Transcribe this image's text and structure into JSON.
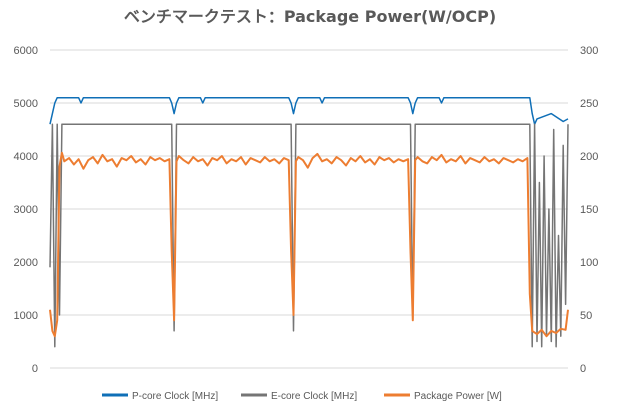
{
  "chart_data": {
    "type": "line",
    "title": "ベンチマークテスト：Package Power(W/OCP)",
    "xlabel": "",
    "ylabel_left": "",
    "ylabel_right": "",
    "ylim_left": [
      0,
      6000
    ],
    "ylim_right": [
      0,
      300
    ],
    "yticks_left": [
      "0",
      "1000",
      "2000",
      "3000",
      "4000",
      "5000",
      "6000"
    ],
    "yticks_right": [
      "0",
      "50",
      "100",
      "150",
      "200",
      "250",
      "300"
    ],
    "grid": true,
    "legend_position": "bottom",
    "colors": {
      "pcore": "#0f6fb7",
      "ecore": "#757575",
      "power": "#ed7d31"
    },
    "series": [
      {
        "name": "P-core Clock [MHz]",
        "axis": "left",
        "color": "#0f6fb7",
        "x": [
          0,
          1,
          2,
          3,
          4,
          12,
          13,
          14,
          15,
          50,
          51,
          52,
          53,
          54,
          62,
          63,
          64,
          65,
          100,
          101,
          102,
          103,
          104,
          112,
          113,
          114,
          115,
          150,
          151,
          152,
          153,
          154,
          162,
          163,
          164,
          165,
          200,
          201,
          202,
          203,
          204,
          210,
          215,
          217
        ],
        "values": [
          4600,
          4800,
          5000,
          5100,
          5100,
          5100,
          5000,
          5100,
          5100,
          5100,
          5000,
          4800,
          5000,
          5100,
          5100,
          5100,
          5000,
          5100,
          5100,
          5000,
          4800,
          5000,
          5100,
          5100,
          5100,
          5000,
          5100,
          5100,
          5000,
          4800,
          5000,
          5100,
          5100,
          5100,
          5000,
          5100,
          5100,
          5100,
          4800,
          4600,
          4700,
          4800,
          4650,
          4700
        ]
      },
      {
        "name": "E-core Clock [MHz]",
        "axis": "left",
        "color": "#757575",
        "x": [
          0,
          1,
          2,
          3,
          4,
          5,
          12,
          13,
          14,
          15,
          50,
          51,
          52,
          53,
          54,
          62,
          63,
          64,
          65,
          100,
          101,
          102,
          103,
          104,
          112,
          113,
          114,
          115,
          150,
          151,
          152,
          153,
          154,
          162,
          163,
          164,
          165,
          200,
          201,
          202,
          203,
          204,
          205,
          206,
          207,
          208,
          209,
          210,
          211,
          212,
          213,
          214,
          215,
          216,
          217
        ],
        "values": [
          1900,
          4600,
          400,
          4600,
          1000,
          4600,
          4600,
          4600,
          4600,
          4600,
          4600,
          4600,
          700,
          4600,
          4600,
          4600,
          4600,
          4600,
          4600,
          4600,
          4600,
          700,
          4600,
          4600,
          4600,
          4600,
          4600,
          4600,
          4600,
          4600,
          900,
          4600,
          4600,
          4600,
          4600,
          4600,
          4600,
          4600,
          4600,
          400,
          4600,
          500,
          3500,
          400,
          4000,
          600,
          3000,
          500,
          4500,
          400,
          2500,
          600,
          4200,
          1200,
          4600
        ]
      },
      {
        "name": "Package Power [W]",
        "axis": "right",
        "color": "#ed7d31",
        "x": [
          0,
          1,
          2,
          3,
          4,
          5,
          6,
          8,
          10,
          12,
          14,
          16,
          18,
          20,
          22,
          24,
          26,
          28,
          30,
          32,
          34,
          36,
          38,
          40,
          42,
          44,
          46,
          48,
          50,
          51,
          52,
          53,
          54,
          56,
          58,
          60,
          62,
          64,
          66,
          68,
          70,
          72,
          74,
          76,
          78,
          80,
          82,
          84,
          86,
          88,
          90,
          92,
          94,
          96,
          98,
          100,
          101,
          102,
          103,
          104,
          106,
          108,
          110,
          112,
          114,
          116,
          118,
          120,
          122,
          124,
          126,
          128,
          130,
          132,
          134,
          136,
          138,
          140,
          142,
          144,
          146,
          148,
          150,
          151,
          152,
          153,
          154,
          156,
          158,
          160,
          162,
          164,
          166,
          168,
          170,
          172,
          174,
          176,
          178,
          180,
          182,
          184,
          186,
          188,
          190,
          192,
          194,
          196,
          198,
          200,
          201,
          202,
          204,
          206,
          208,
          210,
          212,
          214,
          216,
          217
        ],
        "values": [
          55,
          35,
          30,
          45,
          190,
          203,
          195,
          198,
          192,
          197,
          188,
          196,
          199,
          193,
          201,
          195,
          197,
          190,
          198,
          196,
          200,
          194,
          197,
          192,
          199,
          196,
          198,
          195,
          197,
          110,
          45,
          195,
          200,
          196,
          193,
          199,
          195,
          197,
          191,
          198,
          196,
          200,
          193,
          197,
          195,
          199,
          192,
          198,
          196,
          194,
          199,
          195,
          197,
          193,
          198,
          196,
          110,
          50,
          195,
          199,
          196,
          189,
          198,
          202,
          195,
          197,
          193,
          199,
          196,
          191,
          198,
          195,
          200,
          194,
          197,
          192,
          199,
          196,
          198,
          194,
          197,
          195,
          197,
          110,
          45,
          196,
          199,
          195,
          193,
          199,
          196,
          201,
          194,
          197,
          195,
          200,
          193,
          198,
          196,
          194,
          199,
          195,
          197,
          193,
          198,
          196,
          194,
          197,
          195,
          198,
          70,
          35,
          32,
          36,
          30,
          35,
          33,
          37,
          36,
          55
        ]
      }
    ]
  }
}
